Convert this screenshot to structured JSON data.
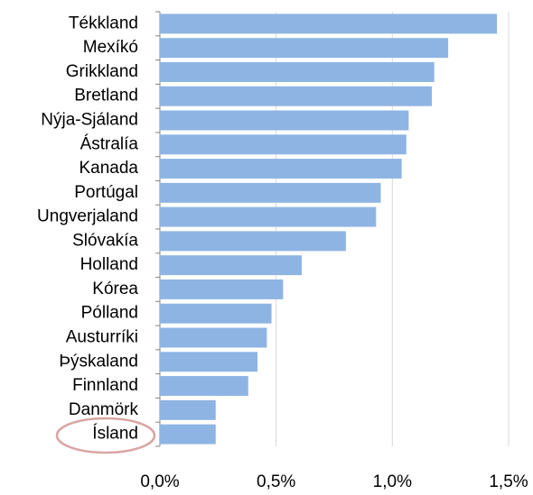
{
  "chart_data": {
    "type": "barh",
    "categories": [
      "Tékkland",
      "Mexíkó",
      "Grikkland",
      "Bretland",
      "Nýja-Sjáland",
      "Ástralía",
      "Kanada",
      "Portúgal",
      "Ungverjaland",
      "Slóvakía",
      "Holland",
      "Kórea",
      "Pólland",
      "Austurríki",
      "Þýskaland",
      "Finnland",
      "Danmörk",
      "Ísland"
    ],
    "values": [
      1.45,
      1.24,
      1.18,
      1.17,
      1.07,
      1.06,
      1.04,
      0.95,
      0.93,
      0.8,
      0.61,
      0.53,
      0.48,
      0.46,
      0.42,
      0.38,
      0.24,
      0.24
    ],
    "color": "#8eb4e3",
    "xlim": [
      0,
      1.5
    ],
    "xticks": [
      {
        "value": 0,
        "label": "0,0%"
      },
      {
        "value": 0.5,
        "label": "0,5%"
      },
      {
        "value": 1.0,
        "label": "1,0%"
      },
      {
        "value": 1.5,
        "label": "1,5%"
      }
    ],
    "grid": true
  }
}
